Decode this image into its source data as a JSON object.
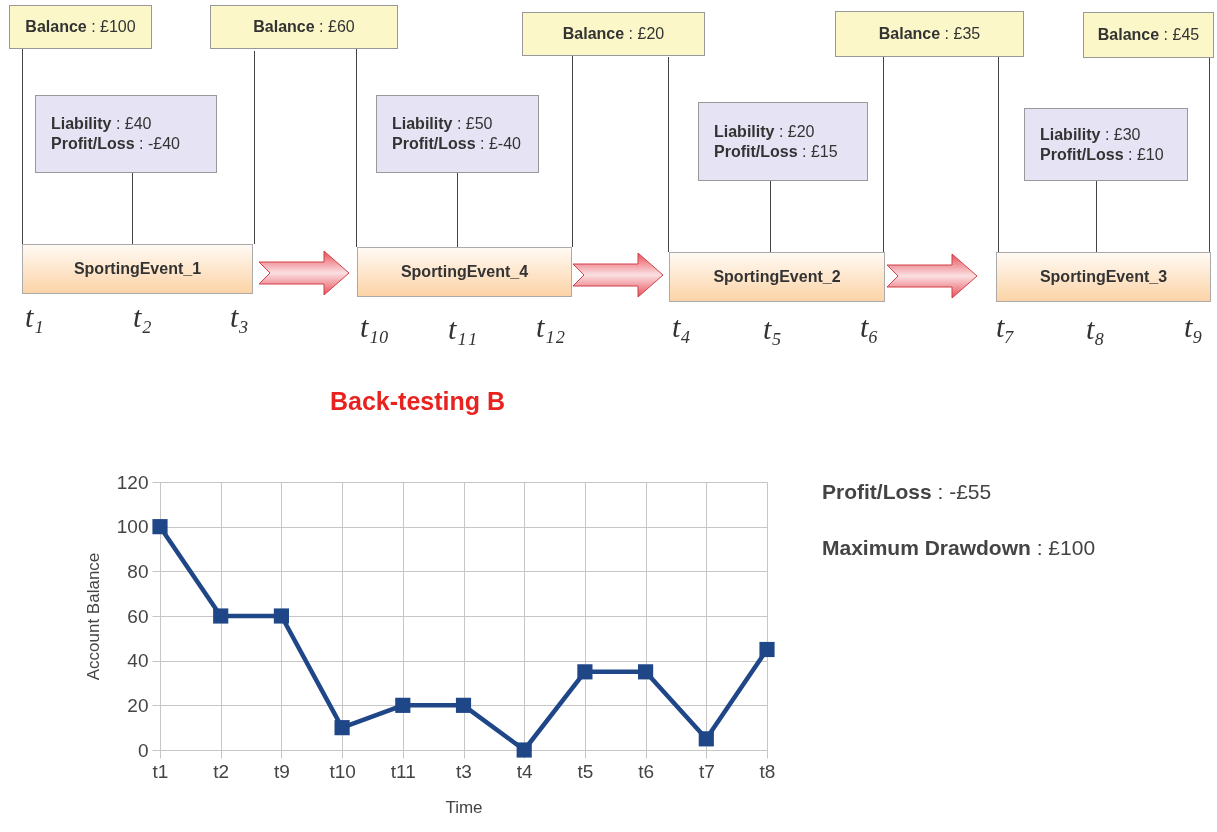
{
  "chart_data": [
    {
      "type": "other",
      "annotations": [
        "Balance : £100",
        "Balance : £60",
        "Balance : £20",
        "Balance : £35",
        "Balance : £45",
        "Liability : £40",
        "Profit/Loss : -£40",
        "Liability : £50",
        "Profit/Loss : £-40",
        "Liability : £20",
        "Profit/Loss : £15",
        "Liability : £30",
        "Profit/Loss : £10",
        "SportingEvent_1",
        "SportingEvent_4",
        "SportingEvent_2",
        "SportingEvent_3",
        "t₁",
        "t₂",
        "t₃",
        "t₁₀",
        "t₁₁",
        "t₁₂",
        "t₄",
        "t₅",
        "t₆",
        "t₇",
        "t₈",
        "t₉"
      ]
    },
    {
      "type": "line",
      "title": "Back-testing B",
      "xlabel": "Time",
      "ylabel": "Account Balance",
      "categories": [
        "t1",
        "t2",
        "t9",
        "t10",
        "t11",
        "t3",
        "t4",
        "t5",
        "t6",
        "t7",
        "t8"
      ],
      "series": [
        {
          "color": "#1f4788",
          "values": [
            100,
            60,
            60,
            10,
            20,
            20,
            0,
            35,
            35,
            5,
            45
          ]
        }
      ],
      "ylim": [
        0,
        120
      ],
      "yticks": [
        0,
        20,
        40,
        60,
        80,
        100,
        120
      ],
      "grid": true,
      "marker": "square",
      "annotations": [
        "Profit/Loss : -£55",
        "Maximum Drawdown : £100"
      ]
    }
  ]
}
